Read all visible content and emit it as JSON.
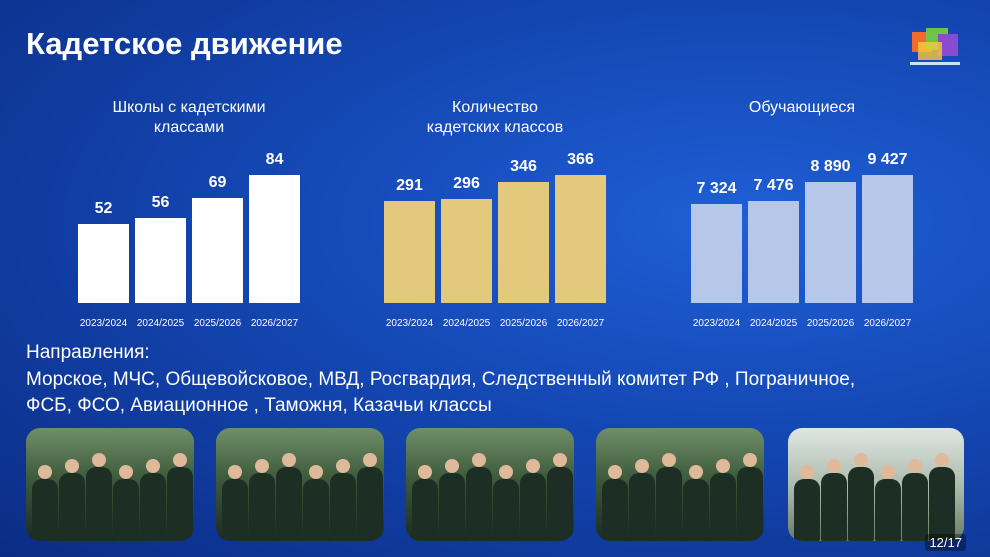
{
  "header": {
    "title": "Кадетское движение"
  },
  "chart_data": [
    {
      "type": "bar",
      "title": "Школы с кадетскими классами",
      "categories": [
        "2023/2024",
        "2024/2025",
        "2025/2026",
        "2026/2027"
      ],
      "values": [
        52,
        56,
        69,
        84
      ],
      "color": "#ffffff"
    },
    {
      "type": "bar",
      "title": "Количество кадетских классов",
      "categories": [
        "2023/2024",
        "2024/2025",
        "2025/2026",
        "2026/2027"
      ],
      "values": [
        291,
        296,
        346,
        366
      ],
      "color": "#e2c97c"
    },
    {
      "type": "bar",
      "title": "Обучающиеся",
      "categories": [
        "2023/2024",
        "2024/2025",
        "2025/2026",
        "2026/2027"
      ],
      "values": [
        7324,
        7476,
        8890,
        9427
      ],
      "value_labels": [
        "7 324",
        "7 476",
        "8 890",
        "9 427"
      ],
      "color": "#b6c7e9"
    }
  ],
  "directions": {
    "label": "Направления:",
    "lines": [
      "Морское,  МЧС, Общевойсковое, МВД, Росгвардия, Следственный комитет РФ , Пограничное,",
      "ФСБ, ФСО, Авиационное , Таможня, Казачьи классы"
    ]
  },
  "page_number": "12/17"
}
